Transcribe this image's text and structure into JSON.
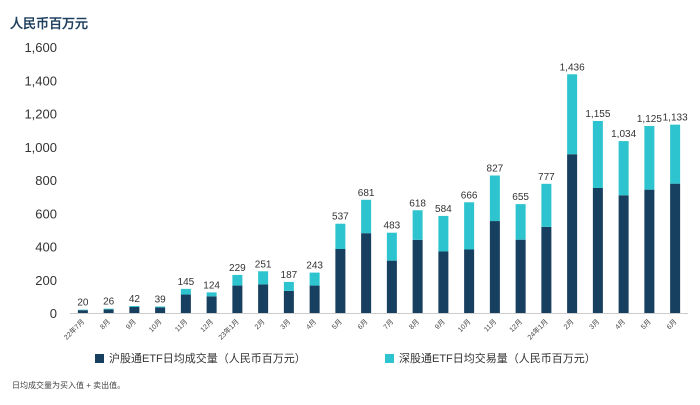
{
  "chart_data": {
    "type": "bar",
    "stacked": true,
    "ylabel": "人民币百万元",
    "ylim": [
      0,
      1600
    ],
    "yticks": [
      "0",
      "200",
      "400",
      "600",
      "800",
      "1,000",
      "1,200",
      "1,400",
      "1,600"
    ],
    "categories": [
      "22年7月",
      "8月",
      "9月",
      "10月",
      "11月",
      "12月",
      "23年1月",
      "2月",
      "3月",
      "4月",
      "5月",
      "6月",
      "7月",
      "8月",
      "9月",
      "10月",
      "11月",
      "12月",
      "24年1月",
      "2月",
      "3月",
      "4月",
      "5月",
      "6月"
    ],
    "series": [
      {
        "name": "沪股通ETF日均成交量（人民币百万元）",
        "color": "#173f5f",
        "values": [
          17,
          22,
          36,
          33,
          111,
          100,
          165,
          172,
          133,
          165,
          385,
          480,
          315,
          440,
          370,
          382,
          553,
          441,
          518,
          955,
          752,
          708,
          742,
          778
        ]
      },
      {
        "name": "深股通ETF日均交易量（人民币百万元）",
        "color": "#2ec4cf",
        "values": [
          3,
          4,
          6,
          6,
          34,
          24,
          64,
          79,
          54,
          78,
          152,
          201,
          168,
          178,
          214,
          284,
          274,
          214,
          259,
          481,
          403,
          326,
          383,
          355
        ]
      }
    ],
    "totals": [
      "20",
      "26",
      "42",
      "39",
      "145",
      "124",
      "229",
      "251",
      "187",
      "243",
      "537",
      "681",
      "483",
      "618",
      "584",
      "666",
      "827",
      "655",
      "777",
      "1,436",
      "1,155",
      "1,034",
      "1,125",
      "1,133"
    ],
    "grid": false,
    "legend": "bottom"
  },
  "unit_label": "人民币百万元",
  "legend": {
    "sh": "沪股通ETF日均成交量（人民币百万元）",
    "sz": "深股通ETF日均交易量（人民币百万元）"
  },
  "footnote": "日均成交量为买入值 + 卖出值。"
}
